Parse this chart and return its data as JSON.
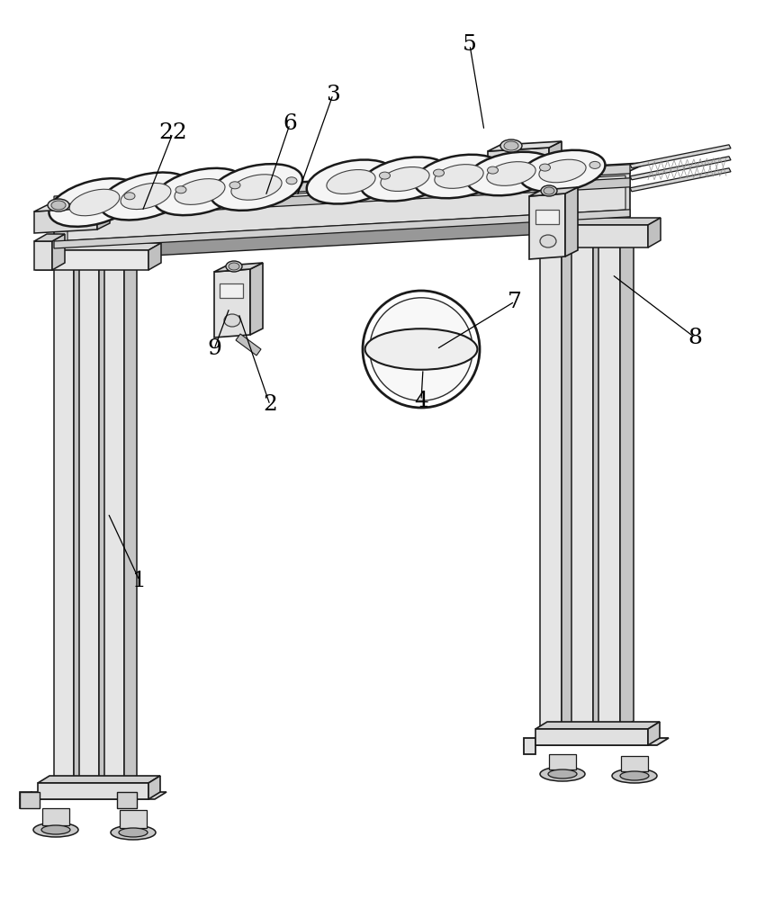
{
  "bg_color": "#ffffff",
  "line_color": "#1a1a1a",
  "lc": "#1a1a1a",
  "c_light": "#eeeeee",
  "c_mid": "#d8d8d8",
  "c_dark": "#b8b8b8",
  "c_darker": "#989898",
  "figsize": [
    8.6,
    10.0
  ],
  "dpi": 100,
  "labels_data": [
    [
      "1",
      155,
      645,
      120,
      570
    ],
    [
      "2",
      300,
      450,
      265,
      348
    ],
    [
      "3",
      370,
      105,
      330,
      218
    ],
    [
      "4",
      468,
      445,
      470,
      410
    ],
    [
      "5",
      522,
      50,
      538,
      145
    ],
    [
      "6",
      322,
      138,
      295,
      218
    ],
    [
      "7",
      572,
      335,
      485,
      388
    ],
    [
      "8",
      772,
      375,
      680,
      305
    ],
    [
      "9",
      238,
      388,
      255,
      342
    ],
    [
      "22",
      192,
      148,
      158,
      235
    ]
  ]
}
